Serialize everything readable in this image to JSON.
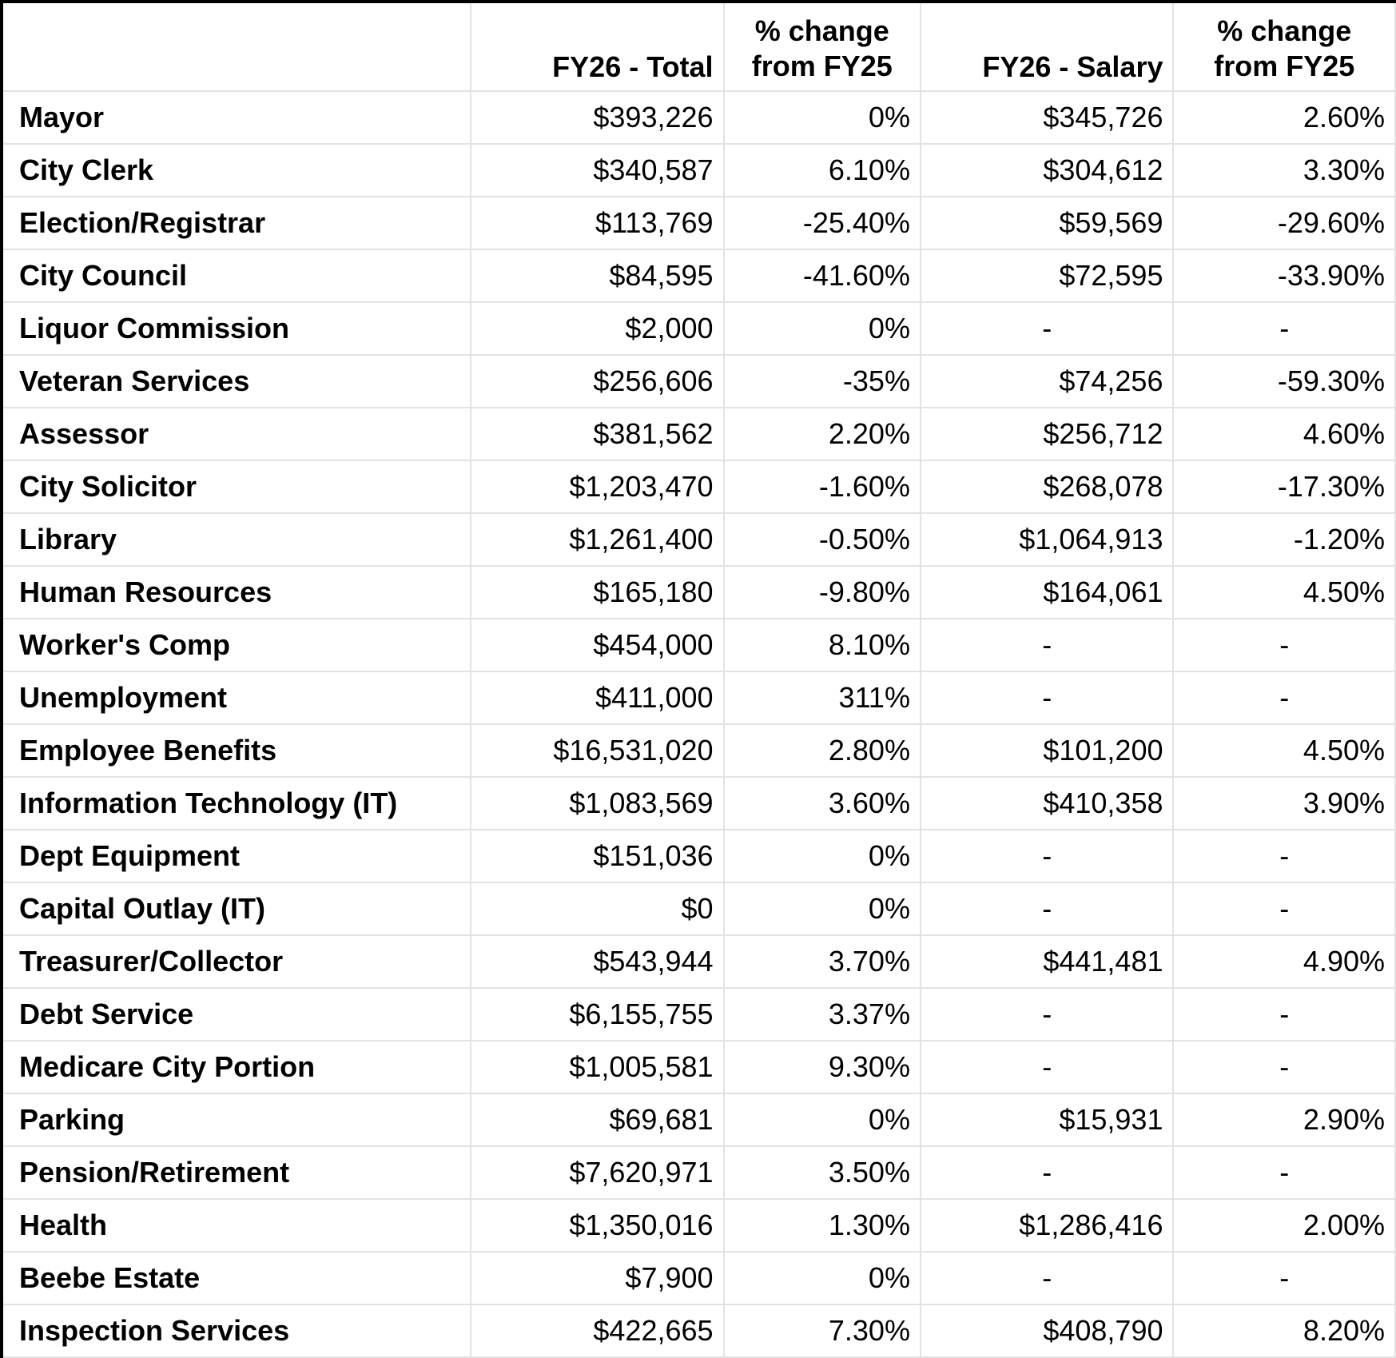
{
  "colors": {
    "background": "#ffffff",
    "text": "#000000",
    "gridline": "#e2e2e2",
    "outer_border": "#000000"
  },
  "table": {
    "corner_label": "",
    "headers": {
      "total": "FY26 - Total",
      "total_change_line1": "% change",
      "total_change_line2": "from FY25",
      "salary": "FY26 - Salary",
      "salary_change_line1": "% change",
      "salary_change_line2": "from FY25"
    },
    "rows": [
      {
        "label": "Mayor",
        "total": "$393,226",
        "total_change": "0%",
        "salary": "$345,726",
        "salary_change": "2.60%"
      },
      {
        "label": "City Clerk",
        "total": "$340,587",
        "total_change": "6.10%",
        "salary": "$304,612",
        "salary_change": "3.30%"
      },
      {
        "label": "Election/Registrar",
        "total": "$113,769",
        "total_change": "-25.40%",
        "salary": "$59,569",
        "salary_change": "-29.60%"
      },
      {
        "label": "City Council",
        "total": "$84,595",
        "total_change": "-41.60%",
        "salary": "$72,595",
        "salary_change": "-33.90%"
      },
      {
        "label": "Liquor Commission",
        "total": "$2,000",
        "total_change": "0%",
        "salary": "-",
        "salary_change": "-"
      },
      {
        "label": "Veteran Services",
        "total": "$256,606",
        "total_change": "-35%",
        "salary": "$74,256",
        "salary_change": "-59.30%"
      },
      {
        "label": "Assessor",
        "total": "$381,562",
        "total_change": "2.20%",
        "salary": "$256,712",
        "salary_change": "4.60%"
      },
      {
        "label": "City Solicitor",
        "total": "$1,203,470",
        "total_change": "-1.60%",
        "salary": "$268,078",
        "salary_change": "-17.30%"
      },
      {
        "label": "Library",
        "total": "$1,261,400",
        "total_change": "-0.50%",
        "salary": "$1,064,913",
        "salary_change": "-1.20%"
      },
      {
        "label": "Human Resources",
        "total": "$165,180",
        "total_change": "-9.80%",
        "salary": "$164,061",
        "salary_change": "4.50%"
      },
      {
        "label": "Worker's Comp",
        "total": "$454,000",
        "total_change": "8.10%",
        "salary": "-",
        "salary_change": "-"
      },
      {
        "label": "Unemployment",
        "total": "$411,000",
        "total_change": "311%",
        "salary": "-",
        "salary_change": "-"
      },
      {
        "label": "Employee Benefits",
        "total": "$16,531,020",
        "total_change": "2.80%",
        "salary": "$101,200",
        "salary_change": "4.50%"
      },
      {
        "label": "Information Technology (IT)",
        "total": "$1,083,569",
        "total_change": "3.60%",
        "salary": "$410,358",
        "salary_change": "3.90%"
      },
      {
        "label": "Dept Equipment",
        "total": "$151,036",
        "total_change": "0%",
        "salary": "-",
        "salary_change": "-"
      },
      {
        "label": "Capital Outlay (IT)",
        "total": "$0",
        "total_change": "0%",
        "salary": "-",
        "salary_change": "-"
      },
      {
        "label": "Treasurer/Collector",
        "total": "$543,944",
        "total_change": "3.70%",
        "salary": "$441,481",
        "salary_change": "4.90%"
      },
      {
        "label": "Debt Service",
        "total": "$6,155,755",
        "total_change": "3.37%",
        "salary": "-",
        "salary_change": "-"
      },
      {
        "label": "Medicare City Portion",
        "total": "$1,005,581",
        "total_change": "9.30%",
        "salary": "-",
        "salary_change": "-"
      },
      {
        "label": "Parking",
        "total": "$69,681",
        "total_change": "0%",
        "salary": "$15,931",
        "salary_change": "2.90%"
      },
      {
        "label": "Pension/Retirement",
        "total": "$7,620,971",
        "total_change": "3.50%",
        "salary": "-",
        "salary_change": "-"
      },
      {
        "label": "Health",
        "total": "$1,350,016",
        "total_change": "1.30%",
        "salary": "$1,286,416",
        "salary_change": "2.00%"
      },
      {
        "label": "Beebe Estate",
        "total": "$7,900",
        "total_change": "0%",
        "salary": "-",
        "salary_change": "-"
      },
      {
        "label": "Inspection Services",
        "total": "$422,665",
        "total_change": "7.30%",
        "salary": "$408,790",
        "salary_change": "8.20%"
      }
    ]
  },
  "chart_data": {
    "type": "table",
    "title": "",
    "columns": [
      "",
      "FY26 - Total",
      "% change from FY25",
      "FY26 - Salary",
      "% change from FY25"
    ],
    "rows": [
      [
        "Mayor",
        "$393,226",
        "0%",
        "$345,726",
        "2.60%"
      ],
      [
        "City Clerk",
        "$340,587",
        "6.10%",
        "$304,612",
        "3.30%"
      ],
      [
        "Election/Registrar",
        "$113,769",
        "-25.40%",
        "$59,569",
        "-29.60%"
      ],
      [
        "City Council",
        "$84,595",
        "-41.60%",
        "$72,595",
        "-33.90%"
      ],
      [
        "Liquor Commission",
        "$2,000",
        "0%",
        "-",
        "-"
      ],
      [
        "Veteran Services",
        "$256,606",
        "-35%",
        "$74,256",
        "-59.30%"
      ],
      [
        "Assessor",
        "$381,562",
        "2.20%",
        "$256,712",
        "4.60%"
      ],
      [
        "City Solicitor",
        "$1,203,470",
        "-1.60%",
        "$268,078",
        "-17.30%"
      ],
      [
        "Library",
        "$1,261,400",
        "-0.50%",
        "$1,064,913",
        "-1.20%"
      ],
      [
        "Human Resources",
        "$165,180",
        "-9.80%",
        "$164,061",
        "4.50%"
      ],
      [
        "Worker's Comp",
        "$454,000",
        "8.10%",
        "-",
        "-"
      ],
      [
        "Unemployment",
        "$411,000",
        "311%",
        "-",
        "-"
      ],
      [
        "Employee Benefits",
        "$16,531,020",
        "2.80%",
        "$101,200",
        "4.50%"
      ],
      [
        "Information Technology (IT)",
        "$1,083,569",
        "3.60%",
        "$410,358",
        "3.90%"
      ],
      [
        "Dept Equipment",
        "$151,036",
        "0%",
        "-",
        "-"
      ],
      [
        "Capital Outlay (IT)",
        "$0",
        "0%",
        "-",
        "-"
      ],
      [
        "Treasurer/Collector",
        "$543,944",
        "3.70%",
        "$441,481",
        "4.90%"
      ],
      [
        "Debt Service",
        "$6,155,755",
        "3.37%",
        "-",
        "-"
      ],
      [
        "Medicare City Portion",
        "$1,005,581",
        "9.30%",
        "-",
        "-"
      ],
      [
        "Parking",
        "$69,681",
        "0%",
        "$15,931",
        "2.90%"
      ],
      [
        "Pension/Retirement",
        "$7,620,971",
        "3.50%",
        "-",
        "-"
      ],
      [
        "Health",
        "$1,350,016",
        "1.30%",
        "$1,286,416",
        "2.00%"
      ],
      [
        "Beebe Estate",
        "$7,900",
        "0%",
        "-",
        "-"
      ],
      [
        "Inspection Services",
        "$422,665",
        "7.30%",
        "$408,790",
        "8.20%"
      ]
    ]
  }
}
